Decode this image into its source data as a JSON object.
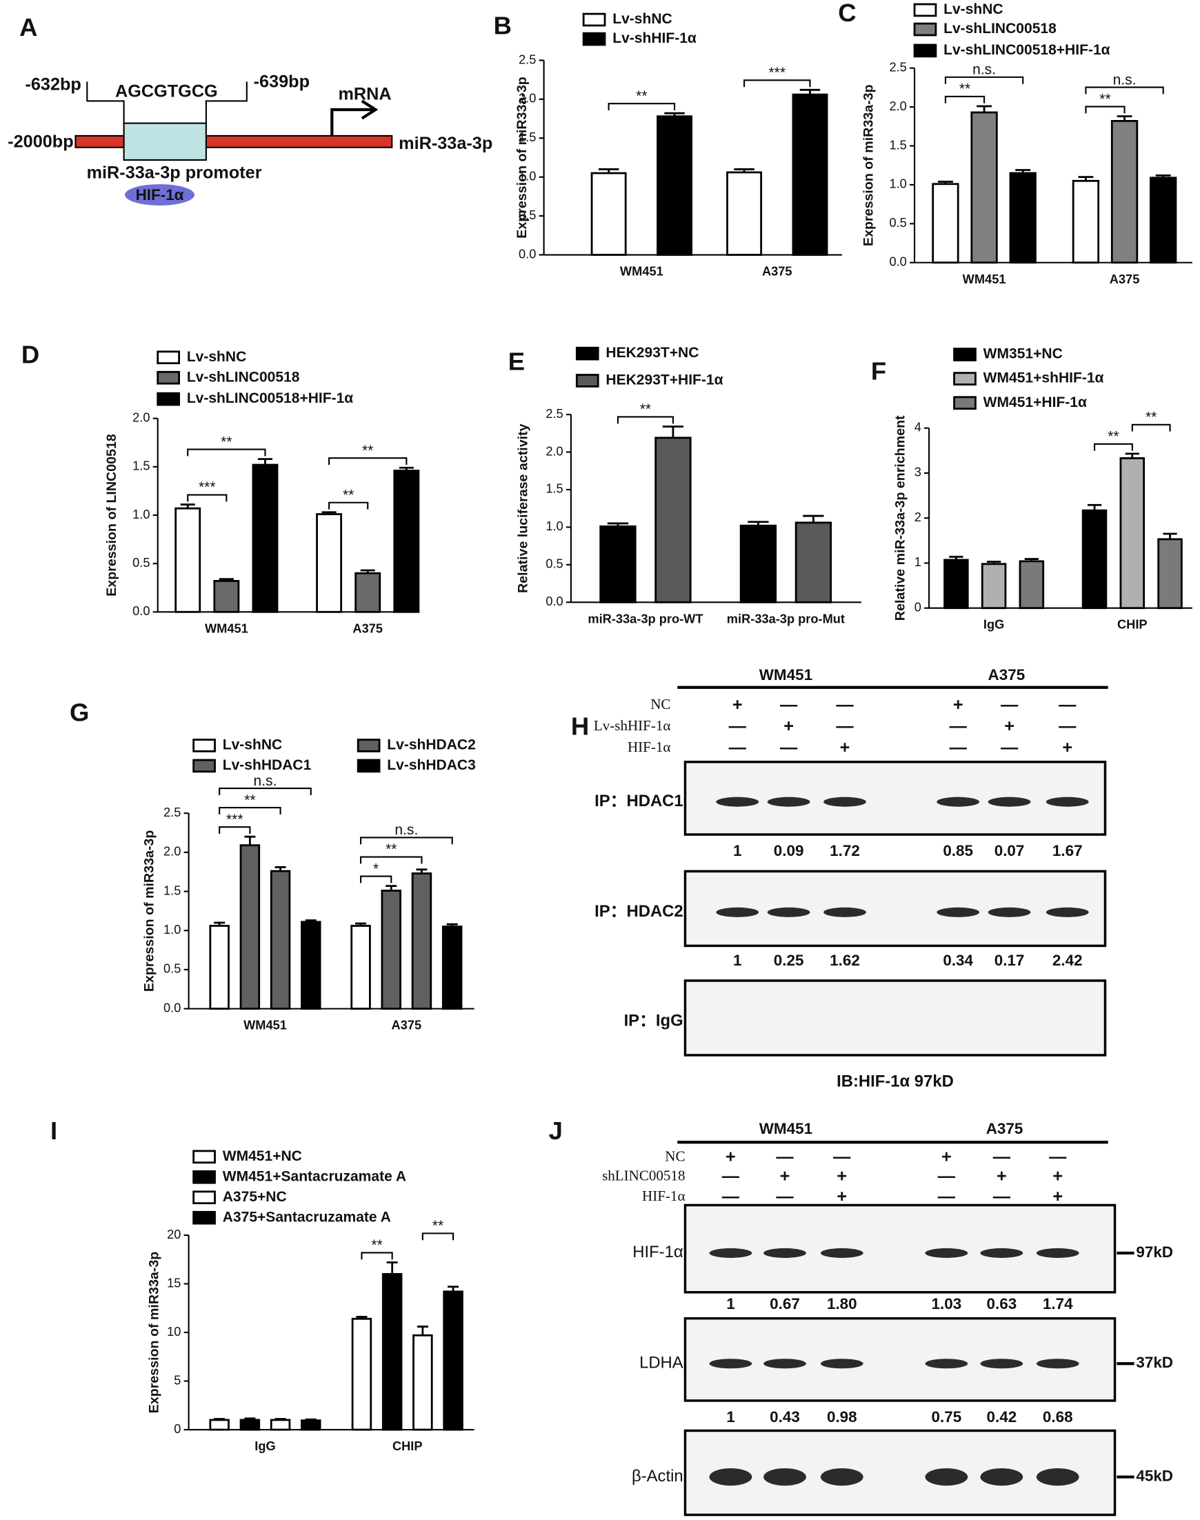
{
  "chart_data": [
    {
      "type": "bar",
      "panel": "B",
      "ylabel": "Expression of miR33a-3p",
      "categories": [
        "WM451",
        "A375"
      ],
      "series": [
        {
          "name": "Lv-shNC",
          "color": "#ffffff",
          "values": [
            1.05,
            1.06
          ],
          "errors": [
            0.05,
            0.04
          ]
        },
        {
          "name": "Lv-shHIF-1α",
          "color": "#000000",
          "values": [
            1.78,
            2.06
          ],
          "errors": [
            0.04,
            0.06
          ]
        }
      ],
      "ylim": [
        0,
        2.5
      ],
      "yticks": [
        {
          "value": 0,
          "label": "0.0"
        },
        0.5,
        {
          "value": 1,
          "label": "1.0"
        },
        1.5,
        {
          "value": 2,
          "label": "2.0"
        },
        2.5
      ],
      "annotations": [
        {
          "text": "**",
          "category": 0,
          "series": [
            0,
            1
          ]
        },
        {
          "text": "***",
          "category": 1,
          "series": [
            0,
            1
          ]
        }
      ]
    },
    {
      "type": "bar",
      "panel": "C",
      "ylabel": "Expression of  miR33a-3p",
      "categories": [
        "WM451",
        "A375"
      ],
      "series": [
        {
          "name": "Lv-shNC",
          "color": "#ffffff",
          "values": [
            1.01,
            1.05
          ],
          "errors": [
            0.03,
            0.05
          ]
        },
        {
          "name": "Lv-shLINC00518",
          "color": "#808080",
          "values": [
            1.93,
            1.82
          ],
          "errors": [
            0.08,
            0.06
          ]
        },
        {
          "name": "Lv-shLINC00518+HIF-1α",
          "color": "#000000",
          "values": [
            1.15,
            1.09
          ],
          "errors": [
            0.04,
            0.03
          ]
        }
      ],
      "ylim": [
        0,
        2.5
      ],
      "yticks": [
        {
          "value": 0,
          "label": "0.0"
        },
        0.5,
        {
          "value": 1,
          "label": "1.0"
        },
        1.5,
        {
          "value": 2,
          "label": "2.0"
        },
        2.5
      ],
      "annotations": [
        {
          "text": "**",
          "category": 0,
          "series": [
            0,
            1
          ]
        },
        {
          "text": "n.s.",
          "category": 0,
          "series": [
            0,
            2
          ]
        },
        {
          "text": "**",
          "category": 1,
          "series": [
            0,
            1
          ]
        },
        {
          "text": "n.s.",
          "category": 1,
          "series": [
            0,
            2
          ]
        }
      ]
    },
    {
      "type": "bar",
      "panel": "D",
      "ylabel": "Expression of  LINC00518",
      "categories": [
        "WM451",
        "A375"
      ],
      "series": [
        {
          "name": "Lv-shNC",
          "color": "#ffffff",
          "values": [
            1.07,
            1.01
          ],
          "errors": [
            0.04,
            0.02
          ]
        },
        {
          "name": "Lv-shLINC00518",
          "color": "#6a6a6a",
          "values": [
            0.32,
            0.4
          ],
          "errors": [
            0.02,
            0.03
          ]
        },
        {
          "name": "Lv-shLINC00518+HIF-1α",
          "color": "#000000",
          "values": [
            1.52,
            1.46
          ],
          "errors": [
            0.06,
            0.03
          ]
        }
      ],
      "ylim": [
        0,
        2
      ],
      "yticks": [
        {
          "value": 0,
          "label": "0.0"
        },
        0.5,
        {
          "value": 1,
          "label": "1.0"
        },
        1.5,
        {
          "value": 2,
          "label": "2.0"
        }
      ],
      "annotations": [
        {
          "text": "***",
          "category": 0,
          "series": [
            0,
            1
          ]
        },
        {
          "text": "**",
          "category": 0,
          "series": [
            0,
            2
          ]
        },
        {
          "text": "**",
          "category": 1,
          "series": [
            0,
            1
          ]
        },
        {
          "text": "**",
          "category": 1,
          "series": [
            0,
            2
          ]
        }
      ]
    },
    {
      "type": "bar",
      "panel": "E",
      "ylabel": "Relative  luciferase activity",
      "categories": [
        "miR-33a-3p pro-WT",
        "miR-33a-3p pro-Mut"
      ],
      "series": [
        {
          "name": "HEK293T+NC",
          "color": "#000000",
          "values": [
            1.01,
            1.02
          ],
          "errors": [
            0.04,
            0.05
          ]
        },
        {
          "name": "HEK293T+HIF-1α",
          "color": "#5a5a5a",
          "values": [
            2.19,
            1.06
          ],
          "errors": [
            0.15,
            0.09
          ]
        }
      ],
      "ylim": [
        0,
        2.5
      ],
      "yticks": [
        {
          "value": 0,
          "label": "0.0"
        },
        0.5,
        {
          "value": 1,
          "label": "1.0"
        },
        1.5,
        {
          "value": 2,
          "label": "2.0"
        },
        2.5
      ],
      "annotations": [
        {
          "text": "**",
          "category": 0,
          "series": [
            0,
            1
          ]
        }
      ]
    },
    {
      "type": "bar",
      "panel": "F",
      "ylabel": "Relative  miR-33a-3p enrichment",
      "categories": [
        "IgG",
        "CHIP"
      ],
      "series": [
        {
          "name": "WM351+NC",
          "color": "#000000",
          "values": [
            1.07,
            2.17
          ],
          "errors": [
            0.07,
            0.12
          ]
        },
        {
          "name": "WM451+shHIF-1α",
          "color": "#b0b0b0",
          "values": [
            0.98,
            3.33
          ],
          "errors": [
            0.05,
            0.1
          ]
        },
        {
          "name": "WM451+HIF-1α",
          "color": "#7a7a7a",
          "values": [
            1.04,
            1.53
          ],
          "errors": [
            0.05,
            0.12
          ]
        }
      ],
      "ylim": [
        0,
        4
      ],
      "yticks": [
        0,
        1,
        2,
        3,
        4
      ],
      "annotations": [
        {
          "text": "**",
          "category": 1,
          "series": [
            0,
            1
          ]
        },
        {
          "text": "**",
          "category": 1,
          "series": [
            1,
            2
          ]
        }
      ]
    },
    {
      "type": "bar",
      "panel": "G",
      "ylabel": "Expression of  miR33a-3p",
      "categories": [
        "WM451",
        "A375"
      ],
      "series": [
        {
          "name": "Lv-shNC",
          "color": "#ffffff",
          "values": [
            1.06,
            1.06
          ],
          "errors": [
            0.04,
            0.03
          ]
        },
        {
          "name": "Lv-shHDAC1",
          "color": "#606060",
          "values": [
            2.09,
            1.51
          ],
          "errors": [
            0.11,
            0.06
          ]
        },
        {
          "name": "Lv-shHDAC2",
          "color": "#606060",
          "values": [
            1.76,
            1.73
          ],
          "errors": [
            0.05,
            0.05
          ]
        },
        {
          "name": "Lv-shHDAC3",
          "color": "#000000",
          "values": [
            1.11,
            1.05
          ],
          "errors": [
            0.02,
            0.03
          ]
        }
      ],
      "ylim": [
        0,
        2.5
      ],
      "yticks": [
        {
          "value": 0,
          "label": "0.0"
        },
        0.5,
        {
          "value": 1,
          "label": "1.0"
        },
        1.5,
        {
          "value": 2,
          "label": "2.0"
        },
        2.5
      ],
      "annotations": [
        {
          "text": "***",
          "category": 0,
          "series": [
            0,
            1
          ]
        },
        {
          "text": "**",
          "category": 0,
          "series": [
            0,
            2
          ]
        },
        {
          "text": "n.s.",
          "category": 0,
          "series": [
            0,
            3
          ]
        },
        {
          "text": "*",
          "category": 1,
          "series": [
            0,
            1
          ]
        },
        {
          "text": "**",
          "category": 1,
          "series": [
            0,
            2
          ]
        },
        {
          "text": "n.s.",
          "category": 1,
          "series": [
            0,
            3
          ]
        }
      ]
    },
    {
      "type": "bar",
      "panel": "I",
      "ylabel": "Expression of  miR33a-3p",
      "categories": [
        "IgG",
        "CHIP"
      ],
      "series": [
        {
          "name": "WM451+NC",
          "color": "#ffffff",
          "values": [
            1.0,
            11.4
          ],
          "errors": [
            0.1,
            0.2
          ]
        },
        {
          "name": "WM451+Santacruzamate A",
          "color": "#000000",
          "values": [
            1.0,
            16.0
          ],
          "errors": [
            0.15,
            1.2
          ]
        },
        {
          "name": "A375+NC",
          "color": "#ffffff",
          "values": [
            1.0,
            9.7
          ],
          "errors": [
            0.1,
            0.9
          ]
        },
        {
          "name": "A375+Santacruzamate A",
          "color": "#000000",
          "values": [
            0.95,
            14.2
          ],
          "errors": [
            0.1,
            0.5
          ]
        }
      ],
      "ylim": [
        0,
        20
      ],
      "yticks": [
        0,
        5,
        10,
        15,
        20
      ],
      "annotations": [
        {
          "text": "**",
          "category": 1,
          "series": [
            0,
            1
          ]
        },
        {
          "text": "**",
          "category": 1,
          "series": [
            2,
            3
          ]
        }
      ]
    }
  ],
  "diagram": {
    "panel": "A",
    "left_site": "-632bp",
    "motif": "AGCGTGCG",
    "right_site": "-639bp",
    "transcript": "mRNA",
    "start": "-2000bp",
    "gene": "miR-33a-3p",
    "promoter": "miR-33a-3p promoter",
    "factor": "HIF-1α"
  },
  "blots": [
    {
      "panel": "H",
      "groups": [
        "WM451",
        "A375"
      ],
      "conditions": [
        {
          "label": "NC",
          "signs": [
            "+",
            "—",
            "—",
            "+",
            "—",
            "—"
          ]
        },
        {
          "label": "Lv-shHIF-1α",
          "signs": [
            "—",
            "+",
            "—",
            "—",
            "+",
            "—"
          ]
        },
        {
          "label": "HIF-1α",
          "signs": [
            "—",
            "—",
            "+",
            "—",
            "—",
            "+"
          ]
        }
      ],
      "rows": [
        {
          "label": "IP：HDAC1",
          "values": [
            "1",
            "0.09",
            "1.72",
            "0.85",
            "0.07",
            "1.67"
          ]
        },
        {
          "label": "IP：HDAC2",
          "values": [
            "1",
            "0.25",
            "1.62",
            "0.34",
            "0.17",
            "2.42"
          ]
        },
        {
          "label": "IP：IgG"
        }
      ],
      "caption": "IB:HIF-1α 97kD"
    },
    {
      "panel": "J",
      "groups": [
        "WM451",
        "A375"
      ],
      "conditions": [
        {
          "label": "NC",
          "signs": [
            "+",
            "—",
            "—",
            "+",
            "—",
            "—"
          ]
        },
        {
          "label": "shLINC00518",
          "signs": [
            "—",
            "+",
            "+",
            "—",
            "+",
            "+"
          ]
        },
        {
          "label": "HIF-1α",
          "signs": [
            "—",
            "—",
            "+",
            "—",
            "—",
            "+"
          ]
        }
      ],
      "rows": [
        {
          "label": "HIF-1α",
          "marker": "97kD",
          "values": [
            "1",
            "0.67",
            "1.80",
            "1.03",
            "0.63",
            "1.74"
          ]
        },
        {
          "label": "LDHA",
          "marker": "37kD",
          "values": [
            "1",
            "0.43",
            "0.98",
            "0.75",
            "0.42",
            "0.68"
          ]
        },
        {
          "label": "β-Actin",
          "marker": "45kD"
        }
      ]
    }
  ]
}
